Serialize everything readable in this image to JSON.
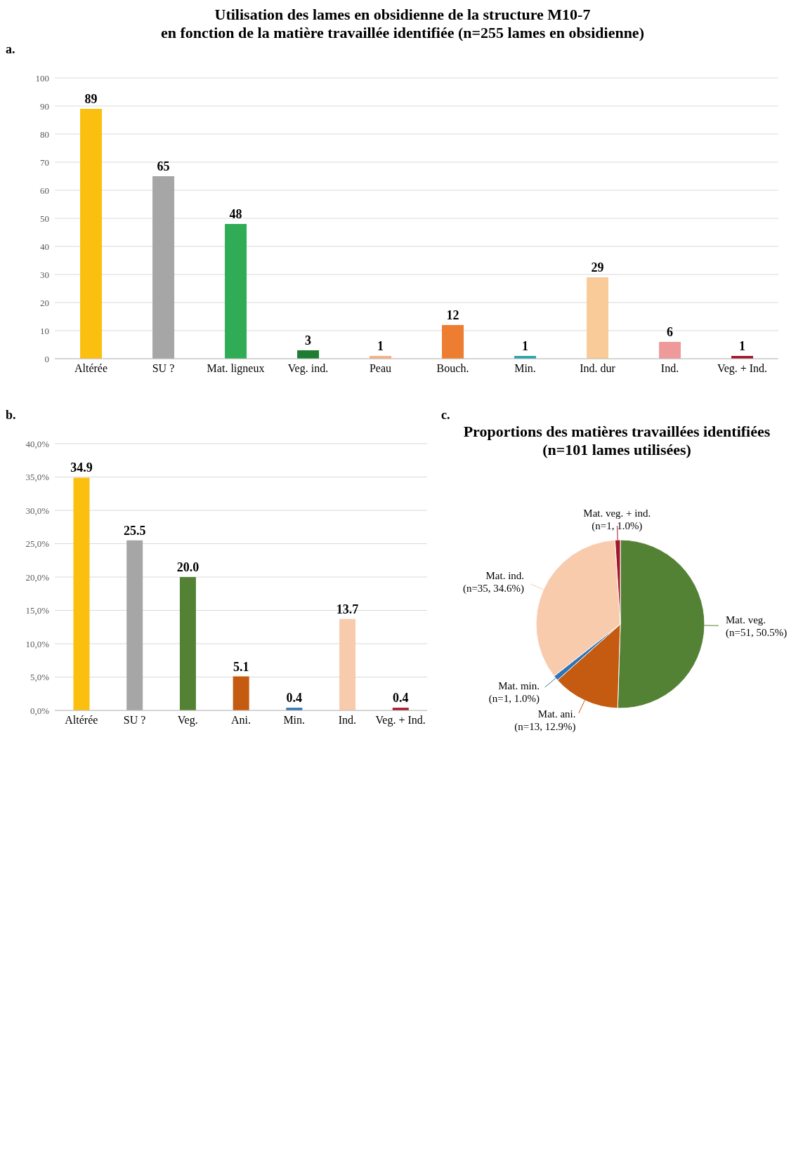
{
  "chart_data": [
    {
      "type": "bar",
      "title": "Utilisation des lames en obsidienne de la structure M10-7",
      "subtitle": "en fonction de la matière travaillée identifiée (n=255 lames en obsidienne)",
      "annotations": [
        "a."
      ],
      "categories": [
        "Altérée",
        "SU ?",
        "Mat. ligneux",
        "Veg. ind.",
        "Peau",
        "Bouch.",
        "Min.",
        "Ind. dur",
        "Ind.",
        "Veg. + Ind."
      ],
      "values": [
        89,
        65,
        48,
        3,
        1,
        12,
        1,
        29,
        6,
        1
      ],
      "colors": [
        "#fbbf10",
        "#a6a6a6",
        "#2fac55",
        "#1e7d32",
        "#f4b183",
        "#ed7d31",
        "#2aa5a5",
        "#f8cb99",
        "#ee9a9a",
        "#a0182a"
      ],
      "ylim": [
        0,
        100
      ],
      "yticks": [
        0,
        10,
        20,
        30,
        40,
        50,
        60,
        70,
        80,
        90,
        100
      ],
      "grid": "y",
      "data_labels": true
    },
    {
      "type": "bar",
      "annotations": [
        "b."
      ],
      "categories": [
        "Altérée",
        "SU ?",
        "Veg.",
        "Ani.",
        "Min.",
        "Ind.",
        "Veg. + Ind."
      ],
      "values": [
        34.9,
        25.5,
        20.0,
        5.1,
        0.4,
        13.7,
        0.4
      ],
      "value_labels": [
        "34.9",
        "25.5",
        "20.0",
        "5.1",
        "0.4",
        "13.7",
        "0.4"
      ],
      "colors": [
        "#fbbf10",
        "#a6a6a6",
        "#548235",
        "#c55a11",
        "#2e75b6",
        "#f8cbad",
        "#a0182a"
      ],
      "ylim": [
        0,
        40
      ],
      "yticks": [
        {
          "value": 0,
          "label": "0,0%"
        },
        {
          "value": 5,
          "label": "5,0%"
        },
        {
          "value": 10,
          "label": "10,0%"
        },
        {
          "value": 15,
          "label": "15,0%"
        },
        {
          "value": 20,
          "label": "20,0%"
        },
        {
          "value": 25,
          "label": "25,0%"
        },
        {
          "value": 30,
          "label": "30,0%"
        },
        {
          "value": 35,
          "label": "35,0%"
        },
        {
          "value": 40,
          "label": "40,0%"
        }
      ],
      "grid": "y"
    },
    {
      "type": "pie",
      "title": "Proportions des matières travaillées identifiées",
      "subtitle": "(n=101 lames utilisées)",
      "annotations": [
        "c."
      ],
      "categories": [
        "Mat. veg.",
        "Mat. ani.",
        "Mat. min.",
        "Mat. ind.",
        "Mat. veg. + ind."
      ],
      "values": [
        50.5,
        12.9,
        1.0,
        34.6,
        1.0
      ],
      "value_labels": [
        "(n=51, 50.5%)",
        "(n=13, 12.9%)",
        "(n=1, 1.0%)",
        "(n=35, 34.6%)",
        "(n=1, 1.0%)"
      ],
      "colors": [
        "#548235",
        "#c55a11",
        "#2e75b6",
        "#f8cbad",
        "#a0182a"
      ]
    }
  ]
}
